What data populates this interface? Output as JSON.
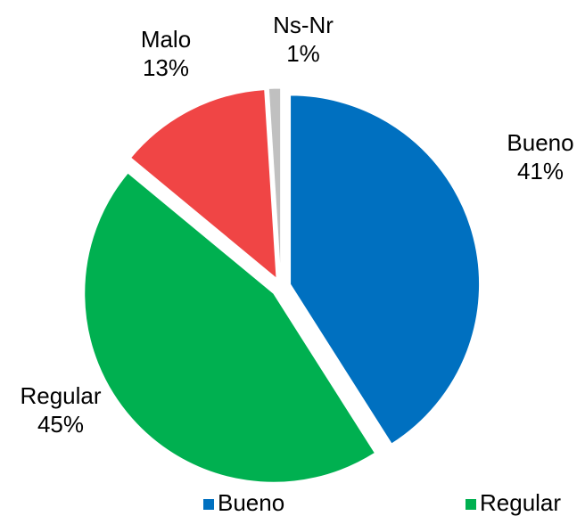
{
  "chart_data": {
    "type": "pie",
    "categories": [
      "Bueno",
      "Regular",
      "Malo",
      "Ns-Nr"
    ],
    "values": [
      41,
      45,
      13,
      1
    ],
    "value_labels": [
      "41%",
      "45%",
      "13%",
      "1%"
    ],
    "colors": [
      "#0070c0",
      "#00b050",
      "#f04545",
      "#c0c0c0"
    ],
    "legend": "bottom"
  }
}
